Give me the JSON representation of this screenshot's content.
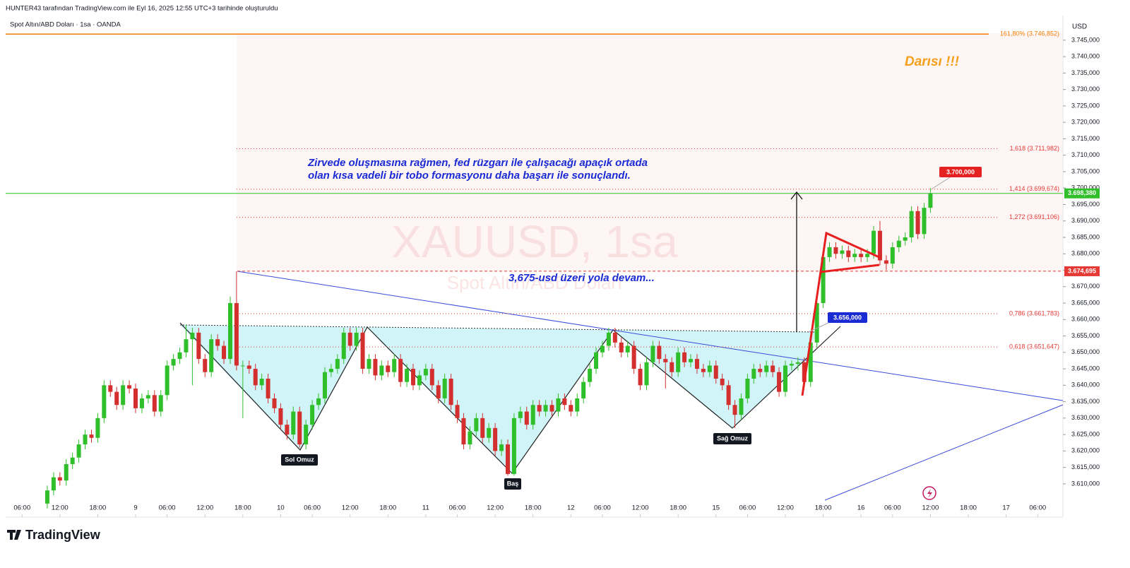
{
  "chart_data": {
    "type": "candlestick",
    "header": "HUNTER43 tarafından TradingView.com ile Eyl 16, 2025 12:55 UTC+3 tarihinde oluşturuldu",
    "title": "Spot Altın/ABD Doları · 1sa · OANDA",
    "currency": "USD",
    "watermark": "XAUUSD, 1sa",
    "watermark_sub": "Spot Altın/ABD Doları",
    "annotations": {
      "main_1": "Zirvede oluşmasına rağmen, fed rüzgarı ile çalışacağı apaçık ortada",
      "main_2": "olan kısa vadeli bir tobo formasyonu daha başarı ile sonuçlandı.",
      "level_note": "3,675-usd üzeri yola devam...",
      "target_note": "Darısı !!!",
      "left_shoulder": "Sol Omuz",
      "head": "Baş",
      "right_shoulder": "Sağ Omuz",
      "target_box": "3.700,000",
      "breakout_box": "3.656,000"
    },
    "brand": "TradingView",
    "up_color": "#2fbf2a",
    "down_color": "#d32f2f",
    "xlim": [
      -2.6,
      165
    ],
    "ylim": [
      3600.3,
      3752.5
    ],
    "xticks": [
      {
        "value": 0,
        "label": "06:00"
      },
      {
        "value": 6,
        "label": "12:00"
      },
      {
        "value": 12,
        "label": "18:00"
      },
      {
        "value": 18,
        "label": "9"
      },
      {
        "value": 23,
        "label": "06:00"
      },
      {
        "value": 29,
        "label": "12:00"
      },
      {
        "value": 35,
        "label": "18:00"
      },
      {
        "value": 41,
        "label": "10"
      },
      {
        "value": 46,
        "label": "06:00"
      },
      {
        "value": 52,
        "label": "12:00"
      },
      {
        "value": 58,
        "label": "18:00"
      },
      {
        "value": 64,
        "label": "11"
      },
      {
        "value": 69,
        "label": "06:00"
      },
      {
        "value": 75,
        "label": "12:00"
      },
      {
        "value": 81,
        "label": "18:00"
      },
      {
        "value": 87,
        "label": "12"
      },
      {
        "value": 92,
        "label": "06:00"
      },
      {
        "value": 98,
        "label": "12:00"
      },
      {
        "value": 104,
        "label": "18:00"
      },
      {
        "value": 110,
        "label": "15"
      },
      {
        "value": 115,
        "label": "06:00"
      },
      {
        "value": 121,
        "label": "12:00"
      },
      {
        "value": 127,
        "label": "18:00"
      },
      {
        "value": 133,
        "label": "16"
      },
      {
        "value": 138,
        "label": "06:00"
      },
      {
        "value": 144,
        "label": "12:00"
      },
      {
        "value": 150,
        "label": "18:00"
      },
      {
        "value": 156,
        "label": "17"
      },
      {
        "value": 161,
        "label": "06:00"
      }
    ],
    "yticks": [
      {
        "value": 3745,
        "label": "3.745,000"
      },
      {
        "value": 3740,
        "label": "3.740,000"
      },
      {
        "value": 3735,
        "label": "3.735,000"
      },
      {
        "value": 3730,
        "label": "3.730,000"
      },
      {
        "value": 3725,
        "label": "3.725,000"
      },
      {
        "value": 3720,
        "label": "3.720,000"
      },
      {
        "value": 3715,
        "label": "3.715,000"
      },
      {
        "value": 3710,
        "label": "3.710,000"
      },
      {
        "value": 3705,
        "label": "3.705,000"
      },
      {
        "value": 3700,
        "label": "3.700,000"
      },
      {
        "value": 3695,
        "label": "3.695,000"
      },
      {
        "value": 3690,
        "label": "3.690,000"
      },
      {
        "value": 3685,
        "label": "3.685,000"
      },
      {
        "value": 3680,
        "label": "3.680,000"
      },
      {
        "value": 3675,
        "label": "3.675,000"
      },
      {
        "value": 3670,
        "label": "3.670,000"
      },
      {
        "value": 3665,
        "label": "3.665,000"
      },
      {
        "value": 3660,
        "label": "3.660,000"
      },
      {
        "value": 3655,
        "label": "3.655,000"
      },
      {
        "value": 3650,
        "label": "3.650,000"
      },
      {
        "value": 3645,
        "label": "3.645,000"
      },
      {
        "value": 3640,
        "label": "3.640,000"
      },
      {
        "value": 3635,
        "label": "3.635,000"
      },
      {
        "value": 3630,
        "label": "3.630,000"
      },
      {
        "value": 3625,
        "label": "3.625,000"
      },
      {
        "value": 3620,
        "label": "3.620,000"
      },
      {
        "value": 3615,
        "label": "3.615,000"
      },
      {
        "value": 3610,
        "label": "3.610,000"
      }
    ],
    "fib_levels": [
      {
        "value": 3746.852,
        "label": "161,80% (3.746,852)",
        "color": "#f57c00"
      },
      {
        "value": 3711.982,
        "label": "1,618 (3.711,982)",
        "color": "#e53935"
      },
      {
        "value": 3699.674,
        "label": "1,414 (3.699,674)",
        "color": "#e53935"
      },
      {
        "value": 3691.106,
        "label": "1,272 (3.691,106)",
        "color": "#e53935"
      },
      {
        "value": 3661.783,
        "label": "0,786 (3.661,783)",
        "color": "#e53935"
      },
      {
        "value": 3651.647,
        "label": "0,618 (3.651,647)",
        "color": "#e53935"
      }
    ],
    "price_labels": [
      {
        "value": 3698.38,
        "label": "3.698,380",
        "color": "#2fbf2a"
      },
      {
        "value": 3674.695,
        "label": "3.674,695",
        "color": "#e53935"
      }
    ],
    "candles": [
      [
        4,
        3604,
        3609.5,
        3602.5,
        3608
      ],
      [
        5,
        3608,
        3613.5,
        3606.5,
        3612
      ],
      [
        6,
        3612,
        3613.5,
        3609.5,
        3611
      ],
      [
        7,
        3611,
        3617.5,
        3609.5,
        3616
      ],
      [
        8,
        3616,
        3619.5,
        3614.5,
        3618
      ],
      [
        9,
        3618,
        3623.5,
        3616.5,
        3622
      ],
      [
        10,
        3622,
        3626.5,
        3620.5,
        3625
      ],
      [
        11,
        3625,
        3626.5,
        3622.5,
        3624
      ],
      [
        12,
        3624,
        3631.5,
        3622.5,
        3630
      ],
      [
        13,
        3630,
        3641.5,
        3628.5,
        3640
      ],
      [
        14,
        3640,
        3641.5,
        3636.5,
        3638
      ],
      [
        15,
        3638,
        3639.5,
        3632.5,
        3634
      ],
      [
        16,
        3634,
        3641.5,
        3632.5,
        3640
      ],
      [
        17,
        3640,
        3641.5,
        3637.5,
        3639
      ],
      [
        18,
        3639,
        3640.5,
        3631.5,
        3633
      ],
      [
        19,
        3633,
        3637.5,
        3631.5,
        3636
      ],
      [
        20,
        3636,
        3638.5,
        3634.5,
        3637
      ],
      [
        21,
        3637,
        3638.5,
        3630.5,
        3632
      ],
      [
        22,
        3632,
        3638.5,
        3630.5,
        3637
      ],
      [
        23,
        3637,
        3647.5,
        3635.5,
        3646
      ],
      [
        24,
        3646,
        3649.5,
        3644.5,
        3648
      ],
      [
        25,
        3648,
        3651.5,
        3646.5,
        3650
      ],
      [
        26,
        3650,
        3658.5,
        3648.5,
        3654
      ],
      [
        27,
        3654,
        3657.5,
        3640,
        3656
      ],
      [
        28,
        3656,
        3657.5,
        3646.5,
        3648
      ],
      [
        29,
        3648,
        3649.5,
        3642.5,
        3644
      ],
      [
        30,
        3644,
        3655.5,
        3642.5,
        3654
      ],
      [
        31,
        3654,
        3655.5,
        3650.5,
        3652
      ],
      [
        32,
        3652,
        3653.5,
        3646.5,
        3648
      ],
      [
        33,
        3648,
        3667,
        3646.5,
        3665
      ],
      [
        34,
        3665,
        3674.695,
        3644.5,
        3646
      ],
      [
        35,
        3646,
        3647.5,
        3630,
        3646
      ],
      [
        36,
        3646,
        3647.5,
        3643.5,
        3645
      ],
      [
        37,
        3645,
        3646.5,
        3638.5,
        3640
      ],
      [
        38,
        3640,
        3643.5,
        3638.5,
        3642
      ],
      [
        39,
        3642,
        3643.5,
        3634.5,
        3636
      ],
      [
        40,
        3636,
        3637.5,
        3631.5,
        3633
      ],
      [
        41,
        3633,
        3634.5,
        3626.5,
        3628
      ],
      [
        42,
        3628,
        3629.5,
        3623.5,
        3625
      ],
      [
        43,
        3625,
        3633.5,
        3623.5,
        3632
      ],
      [
        44,
        3632,
        3633.5,
        3621,
        3622
      ],
      [
        45,
        3622,
        3629.5,
        3620.5,
        3628
      ],
      [
        46,
        3628,
        3635.5,
        3626.5,
        3634
      ],
      [
        47,
        3634,
        3637.5,
        3632.5,
        3636
      ],
      [
        48,
        3636,
        3645.5,
        3634.5,
        3644
      ],
      [
        49,
        3644,
        3646.5,
        3642.5,
        3645
      ],
      [
        50,
        3645,
        3649.5,
        3643.5,
        3648
      ],
      [
        51,
        3648,
        3657.5,
        3646.5,
        3656
      ],
      [
        52,
        3656,
        3657.5,
        3650.5,
        3652
      ],
      [
        53,
        3652,
        3657.5,
        3650.5,
        3656
      ],
      [
        54,
        3656,
        3657.5,
        3643.5,
        3645
      ],
      [
        55,
        3645,
        3649.5,
        3643.5,
        3648
      ],
      [
        56,
        3648,
        3649.5,
        3641.5,
        3643
      ],
      [
        57,
        3643,
        3647.5,
        3641.5,
        3646
      ],
      [
        58,
        3646,
        3647.5,
        3642.5,
        3644
      ],
      [
        59,
        3644,
        3649.5,
        3642.5,
        3648
      ],
      [
        60,
        3648,
        3649.5,
        3639.5,
        3641
      ],
      [
        61,
        3641,
        3646.5,
        3639.5,
        3645
      ],
      [
        62,
        3645,
        3646.5,
        3638.5,
        3640
      ],
      [
        63,
        3640,
        3644.5,
        3638.5,
        3643
      ],
      [
        64,
        3643,
        3646.5,
        3641.5,
        3645
      ],
      [
        65,
        3645,
        3646.5,
        3638.5,
        3640
      ],
      [
        66,
        3640,
        3641.5,
        3634.5,
        3636
      ],
      [
        67,
        3636,
        3643.5,
        3634.5,
        3642
      ],
      [
        68,
        3642,
        3643.5,
        3632.5,
        3634
      ],
      [
        69,
        3634,
        3635.5,
        3628.5,
        3630
      ],
      [
        70,
        3630,
        3631.5,
        3620.5,
        3622
      ],
      [
        71,
        3622,
        3627.5,
        3620.5,
        3626
      ],
      [
        72,
        3626,
        3631.5,
        3624.5,
        3630
      ],
      [
        73,
        3630,
        3631.5,
        3622.5,
        3624
      ],
      [
        74,
        3624,
        3628.5,
        3622.5,
        3627
      ],
      [
        75,
        3627,
        3628.5,
        3618.5,
        3620
      ],
      [
        76,
        3620,
        3623.5,
        3618.5,
        3622
      ],
      [
        77,
        3622,
        3623.5,
        3612.5,
        3613
      ],
      [
        78,
        3613,
        3631.5,
        3612.5,
        3630
      ],
      [
        79,
        3630,
        3633.5,
        3628.5,
        3632
      ],
      [
        80,
        3632,
        3633.5,
        3626.5,
        3628
      ],
      [
        81,
        3628,
        3635.5,
        3626.5,
        3634
      ],
      [
        82,
        3634,
        3635.5,
        3630.5,
        3632
      ],
      [
        83,
        3632,
        3635.5,
        3630.5,
        3634
      ],
      [
        84,
        3634,
        3635.5,
        3630.5,
        3632
      ],
      [
        85,
        3632,
        3637.5,
        3630.5,
        3636
      ],
      [
        86,
        3636,
        3637.5,
        3632.5,
        3634
      ],
      [
        87,
        3634,
        3635.5,
        3630.5,
        3632
      ],
      [
        88,
        3632,
        3637.5,
        3630.5,
        3636
      ],
      [
        89,
        3636,
        3642.5,
        3634.5,
        3641
      ],
      [
        90,
        3641,
        3646.5,
        3639.5,
        3645
      ],
      [
        91,
        3645,
        3651.5,
        3643.5,
        3650
      ],
      [
        92,
        3650,
        3653.5,
        3648.5,
        3652
      ],
      [
        93,
        3652,
        3657.5,
        3650.5,
        3656
      ],
      [
        94,
        3656,
        3657.5,
        3651.5,
        3653
      ],
      [
        95,
        3653,
        3654.5,
        3648.5,
        3650
      ],
      [
        96,
        3650,
        3653.5,
        3648.5,
        3652
      ],
      [
        97,
        3652,
        3653.5,
        3643.5,
        3645
      ],
      [
        98,
        3645,
        3646.5,
        3638.5,
        3640
      ],
      [
        99,
        3640,
        3648.5,
        3638.5,
        3647
      ],
      [
        100,
        3647,
        3653.5,
        3645.5,
        3652
      ],
      [
        101,
        3652,
        3653.5,
        3646.5,
        3648
      ],
      [
        102,
        3648,
        3649.5,
        3639,
        3647
      ],
      [
        103,
        3647,
        3648.5,
        3642.5,
        3644
      ],
      [
        104,
        3644,
        3651.5,
        3642.5,
        3650
      ],
      [
        105,
        3650,
        3651.5,
        3645.5,
        3647
      ],
      [
        106,
        3647,
        3649.5,
        3645.5,
        3648
      ],
      [
        107,
        3648,
        3649.5,
        3643.5,
        3645
      ],
      [
        108,
        3645,
        3646.5,
        3642.5,
        3644
      ],
      [
        109,
        3644,
        3647.5,
        3642.5,
        3646
      ],
      [
        110,
        3646,
        3647.5,
        3640.5,
        3642
      ],
      [
        111,
        3642,
        3643.5,
        3638.5,
        3640
      ],
      [
        112,
        3640,
        3641.5,
        3632.5,
        3634
      ],
      [
        113,
        3634,
        3635.5,
        3627,
        3631
      ],
      [
        114,
        3631,
        3637.5,
        3629.5,
        3636
      ],
      [
        115,
        3636,
        3643.5,
        3634.5,
        3642
      ],
      [
        116,
        3642,
        3646.5,
        3640.5,
        3645
      ],
      [
        117,
        3645,
        3646.5,
        3642.5,
        3644
      ],
      [
        118,
        3644,
        3647.5,
        3642.5,
        3646
      ],
      [
        119,
        3646,
        3647.5,
        3642.5,
        3644
      ],
      [
        120,
        3644,
        3645.5,
        3636.5,
        3638
      ],
      [
        121,
        3638,
        3647.5,
        3636.5,
        3646
      ],
      [
        122,
        3646,
        3647.5,
        3644.5,
        3646.5
      ],
      [
        123,
        3646.5,
        3648.5,
        3644.5,
        3647
      ],
      [
        124,
        3647,
        3648.5,
        3639.5,
        3641
      ],
      [
        125,
        3641,
        3654.5,
        3639.5,
        3653
      ],
      [
        126,
        3653,
        3667,
        3651.5,
        3665
      ],
      [
        127,
        3665,
        3680.5,
        3663.5,
        3679
      ],
      [
        128,
        3679,
        3683.5,
        3677.5,
        3682
      ],
      [
        129,
        3682,
        3683.5,
        3678.5,
        3680
      ],
      [
        130,
        3680,
        3682.5,
        3678.5,
        3681
      ],
      [
        131,
        3681,
        3682.5,
        3677.5,
        3679
      ],
      [
        132,
        3679,
        3681.5,
        3677.5,
        3680
      ],
      [
        133,
        3680,
        3681.5,
        3677.5,
        3679
      ],
      [
        134,
        3679,
        3681.5,
        3677.5,
        3680
      ],
      [
        135,
        3680,
        3688.5,
        3678.5,
        3687
      ],
      [
        136,
        3687,
        3690,
        3676.5,
        3678
      ],
      [
        137,
        3678,
        3679.5,
        3675,
        3677
      ],
      [
        138,
        3677,
        3683.5,
        3675.5,
        3682
      ],
      [
        139,
        3682,
        3685.5,
        3680.5,
        3684
      ],
      [
        140,
        3684,
        3686.5,
        3682.5,
        3685
      ],
      [
        141,
        3685,
        3694.5,
        3683.5,
        3693
      ],
      [
        142,
        3693,
        3694.5,
        3684.5,
        3686
      ],
      [
        143,
        3686,
        3695.5,
        3684.5,
        3694
      ],
      [
        144,
        3694,
        3700,
        3692.5,
        3698.38
      ]
    ]
  }
}
